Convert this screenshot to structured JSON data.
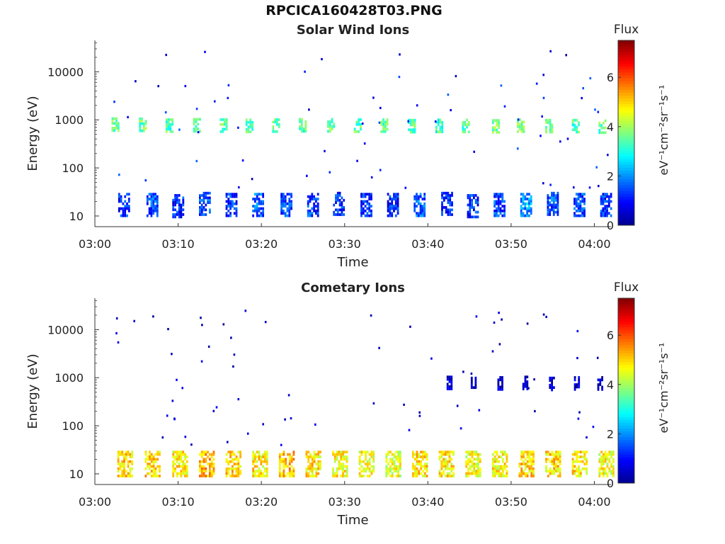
{
  "figure": {
    "title": "RPCICA160428T03.PNG"
  },
  "colorbar": {
    "label": "Flux",
    "unit_label": "eV⁻¹cm⁻²sr⁻¹s⁻¹",
    "ticks": [
      "0",
      "2",
      "4",
      "6"
    ],
    "range": [
      0,
      7.5
    ],
    "colormap": [
      "#00008f",
      "#0000ff",
      "#0080ff",
      "#00ffff",
      "#80ff80",
      "#ffff00",
      "#ff8000",
      "#ff0000",
      "#800000"
    ]
  },
  "chart_data": [
    {
      "type": "heatmap",
      "title": "Solar Wind Ions",
      "xlabel": "Time",
      "ylabel": "Energy (eV)",
      "x_ticks": [
        "03:00",
        "03:10",
        "03:20",
        "03:30",
        "03:40",
        "03:50",
        "04:00"
      ],
      "y_ticks": [
        "10",
        "100",
        "1000",
        "10000"
      ],
      "y_scale": "log",
      "xlim": [
        "03:00",
        "04:02"
      ],
      "ylim": [
        6,
        45000
      ],
      "z_unit": "Flux",
      "bursts": [
        {
          "t": "03:02.5",
          "e_center": 820,
          "flux": 3.5
        },
        {
          "t": "03:05.8",
          "e_center": 810,
          "flux": 3.6
        },
        {
          "t": "03:09.0",
          "e_center": 780,
          "flux": 3.4
        },
        {
          "t": "03:12.3",
          "e_center": 790,
          "flux": 3.5
        },
        {
          "t": "03:15.5",
          "e_center": 780,
          "flux": 3.4
        },
        {
          "t": "03:18.6",
          "e_center": 770,
          "flux": 3.3
        },
        {
          "t": "03:21.8",
          "e_center": 780,
          "flux": 3.4
        },
        {
          "t": "03:25.0",
          "e_center": 790,
          "flux": 3.4
        },
        {
          "t": "03:28.4",
          "e_center": 790,
          "flux": 3.6
        },
        {
          "t": "03:31.6",
          "e_center": 780,
          "flux": 3.5
        },
        {
          "t": "03:34.8",
          "e_center": 780,
          "flux": 3.4
        },
        {
          "t": "03:38.1",
          "e_center": 760,
          "flux": 3.5
        },
        {
          "t": "03:41.4",
          "e_center": 770,
          "flux": 3.3
        },
        {
          "t": "03:44.6",
          "e_center": 770,
          "flux": 3.4
        },
        {
          "t": "03:48.2",
          "e_center": 750,
          "flux": 3.6
        },
        {
          "t": "03:51.2",
          "e_center": 780,
          "flux": 3.7
        },
        {
          "t": "03:54.6",
          "e_center": 760,
          "flux": 3.6
        },
        {
          "t": "03:57.8",
          "e_center": 760,
          "flux": 3.4
        },
        {
          "t": "04:01.0",
          "e_center": 740,
          "flux": 3.5
        }
      ],
      "low_energy_bursts": [
        {
          "t": "03:03.5",
          "e_center": 18,
          "flux": 1.2
        },
        {
          "t": "03:06.9",
          "e_center": 18,
          "flux": 1.5
        },
        {
          "t": "03:10.0",
          "e_center": 17,
          "flux": 1.2
        },
        {
          "t": "03:13.2",
          "e_center": 19,
          "flux": 1.4
        },
        {
          "t": "03:16.4",
          "e_center": 18,
          "flux": 1.3
        },
        {
          "t": "03:19.6",
          "e_center": 18,
          "flux": 1.6
        },
        {
          "t": "03:23.0",
          "e_center": 18,
          "flux": 1.4
        },
        {
          "t": "03:26.2",
          "e_center": 18,
          "flux": 1.3
        },
        {
          "t": "03:29.3",
          "e_center": 19,
          "flux": 1.2
        },
        {
          "t": "03:32.6",
          "e_center": 18,
          "flux": 1.2
        },
        {
          "t": "03:35.8",
          "e_center": 18,
          "flux": 1.1
        },
        {
          "t": "03:39.0",
          "e_center": 18,
          "flux": 1.6
        },
        {
          "t": "03:42.3",
          "e_center": 19,
          "flux": 1.3
        },
        {
          "t": "03:45.4",
          "e_center": 17,
          "flux": 1.2
        },
        {
          "t": "03:48.6",
          "e_center": 18,
          "flux": 1.4
        },
        {
          "t": "03:51.8",
          "e_center": 18,
          "flux": 2.0
        },
        {
          "t": "03:55.0",
          "e_center": 19,
          "flux": 1.5
        },
        {
          "t": "03:58.2",
          "e_center": 18,
          "flux": 1.4
        },
        {
          "t": "04:01.4",
          "e_center": 18,
          "flux": 1.3
        }
      ]
    },
    {
      "type": "heatmap",
      "title": "Cometary Ions",
      "xlabel": "Time",
      "ylabel": "Energy (eV)",
      "x_ticks": [
        "03:00",
        "03:10",
        "03:20",
        "03:30",
        "03:40",
        "03:50",
        "04:00"
      ],
      "y_ticks": [
        "10",
        "100",
        "1000",
        "10000"
      ],
      "y_scale": "log",
      "xlim": [
        "03:00",
        "04:02"
      ],
      "ylim": [
        6,
        45000
      ],
      "z_unit": "Flux",
      "bursts": [
        {
          "t": "03:03.6",
          "e_center": 17,
          "flux": 5.0
        },
        {
          "t": "03:06.9",
          "e_center": 17,
          "flux": 5.0
        },
        {
          "t": "03:10.2",
          "e_center": 17,
          "flux": 4.8
        },
        {
          "t": "03:13.4",
          "e_center": 17,
          "flux": 5.2
        },
        {
          "t": "03:16.6",
          "e_center": 17,
          "flux": 5.0
        },
        {
          "t": "03:19.8",
          "e_center": 17,
          "flux": 4.8
        },
        {
          "t": "03:23.0",
          "e_center": 17,
          "flux": 5.2
        },
        {
          "t": "03:26.2",
          "e_center": 17,
          "flux": 4.9
        },
        {
          "t": "03:29.4",
          "e_center": 17,
          "flux": 4.7
        },
        {
          "t": "03:32.6",
          "e_center": 17,
          "flux": 4.6
        },
        {
          "t": "03:35.8",
          "e_center": 17,
          "flux": 4.5
        },
        {
          "t": "03:39.0",
          "e_center": 17,
          "flux": 4.9
        },
        {
          "t": "03:42.2",
          "e_center": 17,
          "flux": 4.8
        },
        {
          "t": "03:45.4",
          "e_center": 17,
          "flux": 4.6
        },
        {
          "t": "03:48.6",
          "e_center": 17,
          "flux": 4.7
        },
        {
          "t": "03:51.8",
          "e_center": 17,
          "flux": 5.0
        },
        {
          "t": "03:55.0",
          "e_center": 17,
          "flux": 4.9
        },
        {
          "t": "03:58.2",
          "e_center": 17,
          "flux": 4.8
        },
        {
          "t": "04:01.4",
          "e_center": 17,
          "flux": 4.6
        }
      ],
      "high_energy_bursts": [
        {
          "t": "03:42.5",
          "e_center": 800,
          "flux": 0.4
        },
        {
          "t": "03:45.4",
          "e_center": 760,
          "flux": 0.4
        },
        {
          "t": "03:48.6",
          "e_center": 780,
          "flux": 0.4
        },
        {
          "t": "03:51.6",
          "e_center": 800,
          "flux": 0.4
        },
        {
          "t": "03:54.8",
          "e_center": 760,
          "flux": 0.4
        },
        {
          "t": "03:57.8",
          "e_center": 780,
          "flux": 0.4
        },
        {
          "t": "04:00.6",
          "e_center": 780,
          "flux": 0.4
        }
      ]
    }
  ]
}
